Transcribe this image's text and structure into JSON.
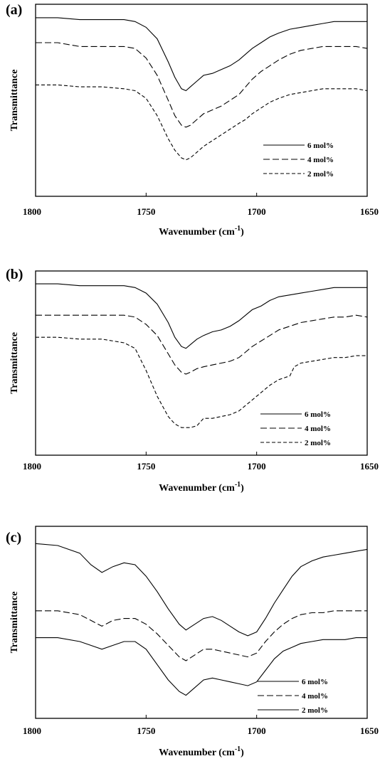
{
  "chart_data": [
    {
      "type": "line",
      "panel_label": "(a)",
      "xlabel": "Wavenumber (cm",
      "xlabel_sup": "-1",
      "ylabel": "Transmittance",
      "xlim": [
        1800,
        1650
      ],
      "ylim": [
        0,
        1
      ],
      "x_ticks": [
        "1800",
        "1750",
        "1700",
        "1650"
      ],
      "x_tick_values": [
        1800,
        1750,
        1700,
        1650
      ],
      "legend_position": "lower-right",
      "series": [
        {
          "name": "6 mol%",
          "dash": "solid",
          "x": [
            1800,
            1790,
            1780,
            1770,
            1760,
            1755,
            1750,
            1745,
            1740,
            1737,
            1734,
            1732,
            1730,
            1727,
            1724,
            1720,
            1716,
            1712,
            1708,
            1705,
            1702,
            1698,
            1694,
            1690,
            1685,
            1680,
            1675,
            1670,
            1665,
            1660,
            1655,
            1650
          ],
          "y": [
            0.93,
            0.93,
            0.92,
            0.92,
            0.92,
            0.91,
            0.88,
            0.82,
            0.7,
            0.62,
            0.56,
            0.55,
            0.57,
            0.6,
            0.63,
            0.64,
            0.66,
            0.68,
            0.71,
            0.74,
            0.77,
            0.8,
            0.83,
            0.85,
            0.87,
            0.88,
            0.89,
            0.9,
            0.91,
            0.91,
            0.91,
            0.91
          ]
        },
        {
          "name": "4 mol%",
          "dash": "long",
          "x": [
            1800,
            1790,
            1780,
            1770,
            1760,
            1755,
            1750,
            1745,
            1740,
            1737,
            1734,
            1732,
            1730,
            1727,
            1724,
            1720,
            1716,
            1712,
            1708,
            1705,
            1702,
            1698,
            1694,
            1690,
            1685,
            1680,
            1675,
            1670,
            1665,
            1660,
            1655,
            1650
          ],
          "y": [
            0.8,
            0.8,
            0.78,
            0.78,
            0.78,
            0.77,
            0.72,
            0.63,
            0.5,
            0.42,
            0.37,
            0.36,
            0.37,
            0.4,
            0.43,
            0.45,
            0.47,
            0.5,
            0.53,
            0.57,
            0.61,
            0.65,
            0.68,
            0.71,
            0.74,
            0.76,
            0.77,
            0.78,
            0.78,
            0.78,
            0.78,
            0.77
          ]
        },
        {
          "name": "2 mol%",
          "dash": "short",
          "x": [
            1800,
            1790,
            1780,
            1770,
            1760,
            1755,
            1750,
            1745,
            1740,
            1737,
            1734,
            1732,
            1730,
            1727,
            1724,
            1720,
            1716,
            1712,
            1708,
            1705,
            1702,
            1698,
            1694,
            1690,
            1685,
            1680,
            1675,
            1670,
            1665,
            1660,
            1655,
            1650
          ],
          "y": [
            0.58,
            0.58,
            0.57,
            0.57,
            0.56,
            0.55,
            0.51,
            0.42,
            0.3,
            0.24,
            0.2,
            0.19,
            0.2,
            0.23,
            0.26,
            0.29,
            0.32,
            0.35,
            0.38,
            0.4,
            0.43,
            0.46,
            0.49,
            0.51,
            0.53,
            0.54,
            0.55,
            0.56,
            0.56,
            0.56,
            0.56,
            0.55
          ]
        }
      ]
    },
    {
      "type": "line",
      "panel_label": "(b)",
      "xlabel": "Wavenumber (cm",
      "xlabel_sup": "-1",
      "ylabel": "Transmittance",
      "xlim": [
        1800,
        1650
      ],
      "ylim": [
        0,
        1
      ],
      "x_ticks": [
        "1800",
        "1750",
        "1700",
        "1650"
      ],
      "x_tick_values": [
        1800,
        1750,
        1700,
        1650
      ],
      "legend_position": "lower-right",
      "series": [
        {
          "name": "6 mol%",
          "dash": "solid",
          "x": [
            1800,
            1790,
            1780,
            1770,
            1760,
            1755,
            1750,
            1745,
            1740,
            1737,
            1734,
            1732,
            1730,
            1727,
            1724,
            1720,
            1716,
            1712,
            1708,
            1705,
            1702,
            1698,
            1694,
            1690,
            1685,
            1680,
            1675,
            1670,
            1665,
            1660,
            1655,
            1650
          ],
          "y": [
            0.93,
            0.93,
            0.92,
            0.92,
            0.92,
            0.91,
            0.88,
            0.82,
            0.72,
            0.64,
            0.59,
            0.58,
            0.6,
            0.63,
            0.65,
            0.67,
            0.68,
            0.7,
            0.73,
            0.76,
            0.79,
            0.81,
            0.84,
            0.86,
            0.87,
            0.88,
            0.89,
            0.9,
            0.91,
            0.91,
            0.91,
            0.91
          ]
        },
        {
          "name": "4 mol%",
          "dash": "long",
          "x": [
            1800,
            1790,
            1780,
            1770,
            1760,
            1755,
            1750,
            1745,
            1740,
            1737,
            1734,
            1732,
            1730,
            1727,
            1724,
            1720,
            1716,
            1712,
            1708,
            1705,
            1702,
            1698,
            1694,
            1690,
            1685,
            1680,
            1675,
            1670,
            1665,
            1660,
            1655,
            1650
          ],
          "y": [
            0.76,
            0.76,
            0.76,
            0.76,
            0.76,
            0.75,
            0.71,
            0.65,
            0.55,
            0.49,
            0.45,
            0.44,
            0.45,
            0.47,
            0.48,
            0.49,
            0.5,
            0.51,
            0.53,
            0.56,
            0.59,
            0.62,
            0.65,
            0.68,
            0.7,
            0.72,
            0.73,
            0.74,
            0.75,
            0.75,
            0.76,
            0.75
          ]
        },
        {
          "name": "2 mol%",
          "dash": "short",
          "x": [
            1800,
            1790,
            1780,
            1770,
            1760,
            1755,
            1750,
            1745,
            1740,
            1737,
            1734,
            1732,
            1730,
            1727,
            1724,
            1720,
            1716,
            1712,
            1708,
            1705,
            1702,
            1698,
            1694,
            1690,
            1685,
            1683,
            1680,
            1675,
            1670,
            1665,
            1660,
            1655,
            1650
          ],
          "y": [
            0.64,
            0.64,
            0.63,
            0.63,
            0.61,
            0.58,
            0.46,
            0.32,
            0.21,
            0.17,
            0.15,
            0.15,
            0.15,
            0.16,
            0.2,
            0.2,
            0.21,
            0.22,
            0.24,
            0.27,
            0.3,
            0.34,
            0.38,
            0.41,
            0.43,
            0.48,
            0.5,
            0.51,
            0.52,
            0.53,
            0.53,
            0.54,
            0.54
          ]
        }
      ]
    },
    {
      "type": "line",
      "panel_label": "(c)",
      "xlabel": "Wavenumber (cm",
      "xlabel_sup": "-1",
      "ylabel": "Transmittance",
      "xlim": [
        1800,
        1650
      ],
      "ylim": [
        0,
        1
      ],
      "x_ticks": [
        "1800",
        "1750",
        "1700",
        "1650"
      ],
      "x_tick_values": [
        1800,
        1750,
        1700,
        1650
      ],
      "legend_position": "lower-right",
      "series": [
        {
          "name": "6 mol%",
          "dash": "solid",
          "x": [
            1800,
            1790,
            1780,
            1775,
            1770,
            1765,
            1760,
            1755,
            1750,
            1745,
            1740,
            1735,
            1732,
            1728,
            1724,
            1720,
            1716,
            1712,
            1708,
            1704,
            1700,
            1696,
            1692,
            1688,
            1684,
            1680,
            1675,
            1670,
            1665,
            1660,
            1655,
            1650
          ],
          "y": [
            0.91,
            0.9,
            0.86,
            0.8,
            0.76,
            0.79,
            0.81,
            0.8,
            0.74,
            0.66,
            0.57,
            0.49,
            0.46,
            0.49,
            0.52,
            0.53,
            0.51,
            0.48,
            0.45,
            0.43,
            0.45,
            0.52,
            0.6,
            0.67,
            0.74,
            0.79,
            0.82,
            0.84,
            0.85,
            0.86,
            0.87,
            0.88
          ]
        },
        {
          "name": "4 mol%",
          "dash": "long",
          "x": [
            1800,
            1790,
            1780,
            1775,
            1770,
            1765,
            1760,
            1755,
            1750,
            1745,
            1740,
            1735,
            1732,
            1728,
            1724,
            1720,
            1716,
            1712,
            1708,
            1704,
            1700,
            1696,
            1692,
            1688,
            1684,
            1680,
            1675,
            1670,
            1665,
            1660,
            1655,
            1650
          ],
          "y": [
            0.56,
            0.56,
            0.54,
            0.51,
            0.48,
            0.51,
            0.52,
            0.52,
            0.49,
            0.44,
            0.38,
            0.32,
            0.3,
            0.33,
            0.36,
            0.36,
            0.35,
            0.34,
            0.33,
            0.32,
            0.34,
            0.4,
            0.45,
            0.49,
            0.52,
            0.54,
            0.55,
            0.55,
            0.56,
            0.56,
            0.56,
            0.56
          ]
        },
        {
          "name": "2 mol%",
          "dash": "solid",
          "x": [
            1800,
            1790,
            1780,
            1775,
            1770,
            1765,
            1760,
            1755,
            1750,
            1745,
            1740,
            1735,
            1732,
            1728,
            1724,
            1720,
            1716,
            1712,
            1708,
            1704,
            1700,
            1696,
            1692,
            1688,
            1684,
            1680,
            1675,
            1670,
            1665,
            1660,
            1655,
            1650
          ],
          "y": [
            0.42,
            0.42,
            0.4,
            0.38,
            0.36,
            0.38,
            0.4,
            0.4,
            0.36,
            0.28,
            0.2,
            0.14,
            0.12,
            0.16,
            0.2,
            0.21,
            0.2,
            0.19,
            0.18,
            0.17,
            0.19,
            0.25,
            0.31,
            0.35,
            0.37,
            0.39,
            0.4,
            0.41,
            0.41,
            0.41,
            0.42,
            0.42
          ]
        }
      ]
    }
  ]
}
